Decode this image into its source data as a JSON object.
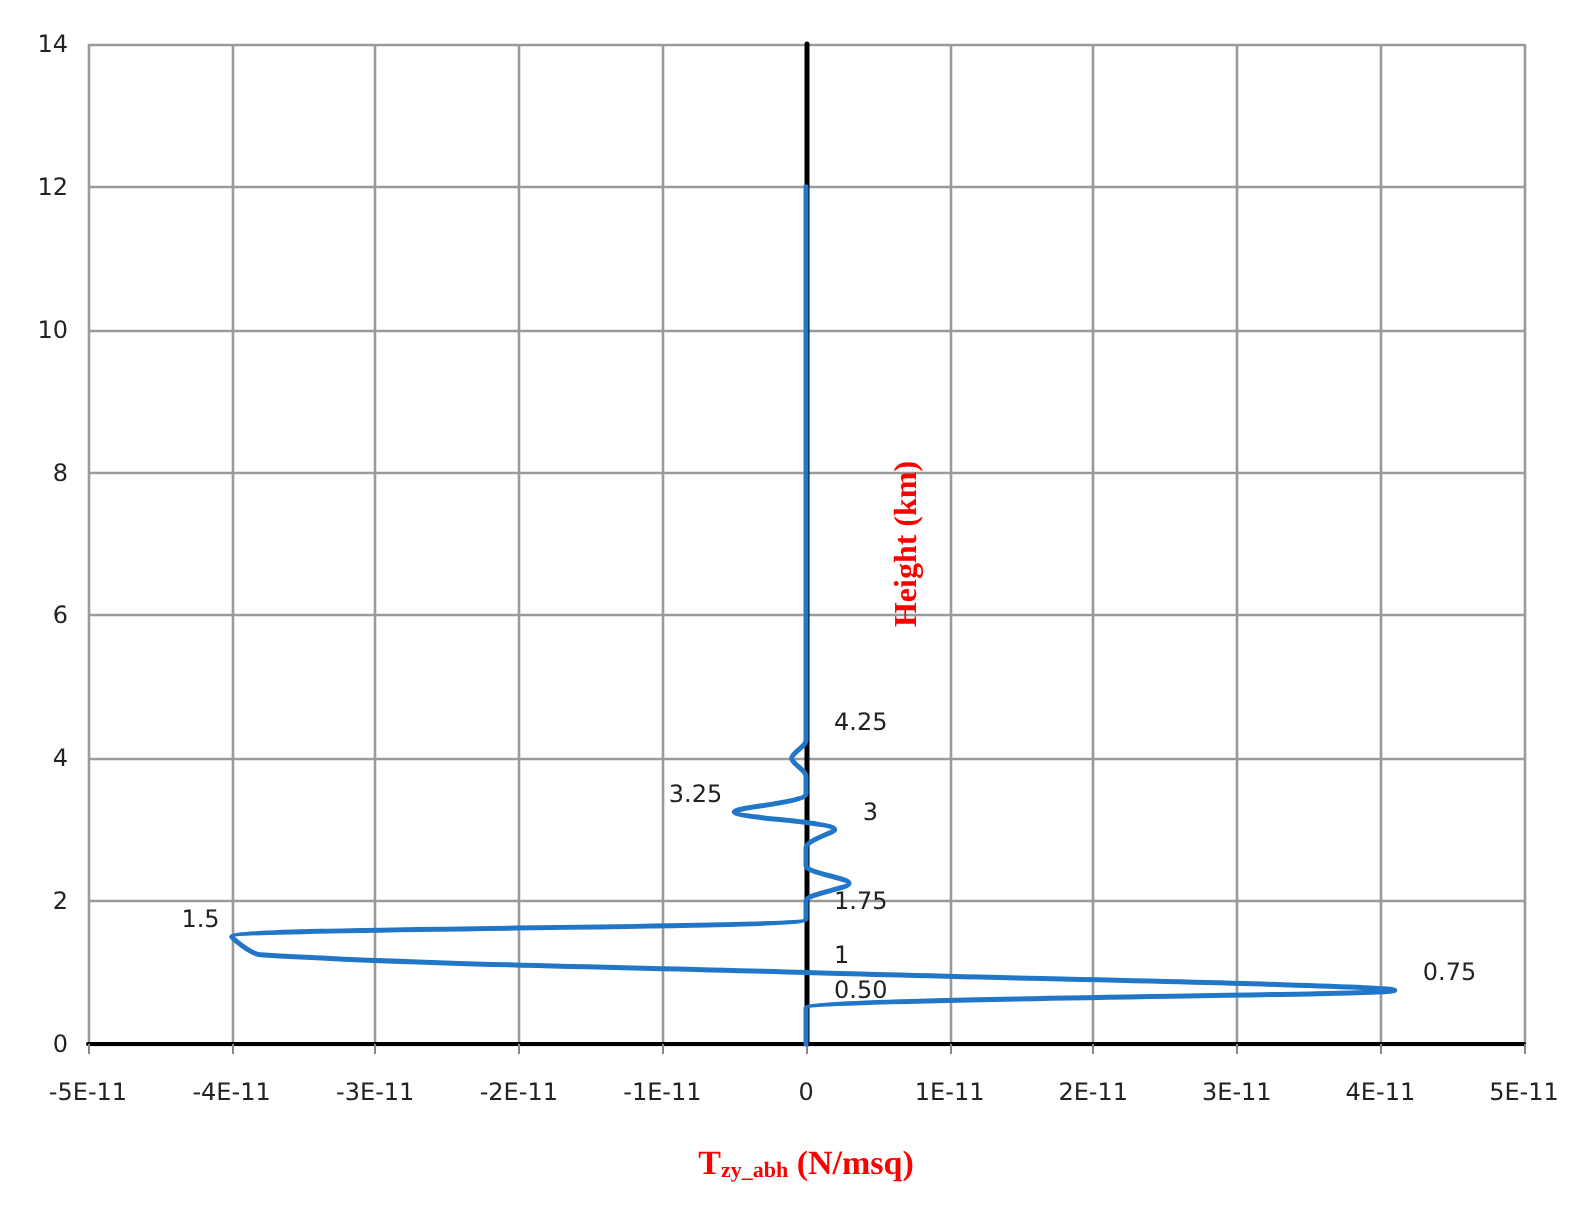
{
  "chart_data": {
    "type": "line",
    "xlabel": "T$_{zy_abh}$ (N/msq)",
    "ylabel": "Height (km)",
    "series": [
      {
        "color": "#2176c7",
        "values": [
          0,
          0.25,
          0.5,
          0.75,
          1,
          1.25,
          1.5,
          1.75,
          2,
          2.25,
          2.5,
          2.75,
          3,
          3.25,
          3.5,
          3.75,
          4,
          4.25,
          4.5,
          5,
          6,
          8,
          10,
          12
        ],
        "x": [
          0,
          0,
          0,
          4.1e-11,
          0,
          -3.8e-11,
          -4e-11,
          0,
          0,
          3e-12,
          0,
          0,
          2e-12,
          -5e-12,
          0,
          0,
          -1e-12,
          0,
          0,
          0,
          0,
          0,
          0,
          0
        ]
      }
    ],
    "annotations": [
      {
        "text": "0.50",
        "x": 0,
        "y": 0.5
      },
      {
        "text": "0.75",
        "x": 4.1e-11,
        "y": 0.75
      },
      {
        "text": "1",
        "x": 0,
        "y": 1
      },
      {
        "text": "1.5",
        "x": -4e-11,
        "y": 1.5
      },
      {
        "text": "1.75",
        "x": 0,
        "y": 1.75
      },
      {
        "text": "3",
        "x": 2e-12,
        "y": 3
      },
      {
        "text": "3.25",
        "x": -5e-12,
        "y": 3.25
      },
      {
        "text": "4.25",
        "x": 0,
        "y": 4.25
      }
    ],
    "xlim": [
      -5e-11,
      5e-11
    ],
    "xticks": [
      {
        "value": -5e-11,
        "label": "-5E-11"
      },
      {
        "value": -4e-11,
        "label": "-4E-11"
      },
      {
        "value": -3e-11,
        "label": "-3E-11"
      },
      {
        "value": -2e-11,
        "label": "-2E-11"
      },
      {
        "value": -1e-11,
        "label": "-1E-11"
      },
      0,
      {
        "value": 1e-11,
        "label": "1E-11"
      },
      {
        "value": 2e-11,
        "label": "2E-11"
      },
      {
        "value": 3e-11,
        "label": "3E-11"
      },
      {
        "value": 4e-11,
        "label": "4E-11"
      },
      {
        "value": 5e-11,
        "label": "5E-11"
      }
    ],
    "ylim": [
      0,
      14
    ],
    "yticks": [
      0,
      2,
      4,
      6,
      8,
      10,
      12,
      14
    ],
    "grid": true,
    "marker": "none",
    "line_style": "solid"
  }
}
